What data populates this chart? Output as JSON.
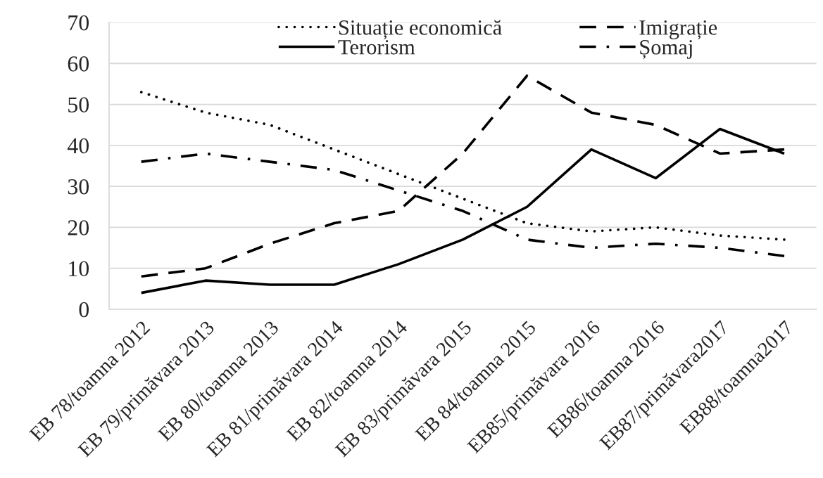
{
  "chart_data": {
    "type": "line",
    "categories": [
      "EB 78/toamna 2012",
      "EB 79/primăvara 2013",
      "EB 80/toamna 2013",
      "EB 81/primăvara 2014",
      "EB 82/toamna 2014",
      "EB 83/primăvara 2015",
      "EB 84/toamna 2015",
      "EB85/primăvara 2016",
      "EB86/toamna 2016",
      "EB87/primăvara2017",
      "EB88/toamna2017"
    ],
    "series": [
      {
        "name": "Situație economică",
        "color": "#000000",
        "line_style": "dotted",
        "values": [
          53,
          48,
          45,
          39,
          33,
          27,
          21,
          19,
          20,
          18,
          17
        ]
      },
      {
        "name": "Imigrație",
        "color": "#000000",
        "line_style": "dashed",
        "values": [
          8,
          10,
          16,
          21,
          24,
          38,
          57,
          48,
          45,
          38,
          39
        ]
      },
      {
        "name": "Terorism",
        "color": "#000000",
        "line_style": "solid",
        "values": [
          4,
          7,
          6,
          6,
          11,
          17,
          25,
          39,
          32,
          44,
          38
        ]
      },
      {
        "name": "Șomaj",
        "color": "#000000",
        "line_style": "dashdot",
        "values": [
          36,
          38,
          36,
          34,
          29,
          24,
          17,
          15,
          16,
          15,
          13
        ]
      }
    ],
    "ylim": [
      0,
      70
    ],
    "yticks": [
      0,
      10,
      20,
      30,
      40,
      50,
      60,
      70
    ],
    "grid": "y",
    "legend": "top",
    "marker": "none"
  }
}
